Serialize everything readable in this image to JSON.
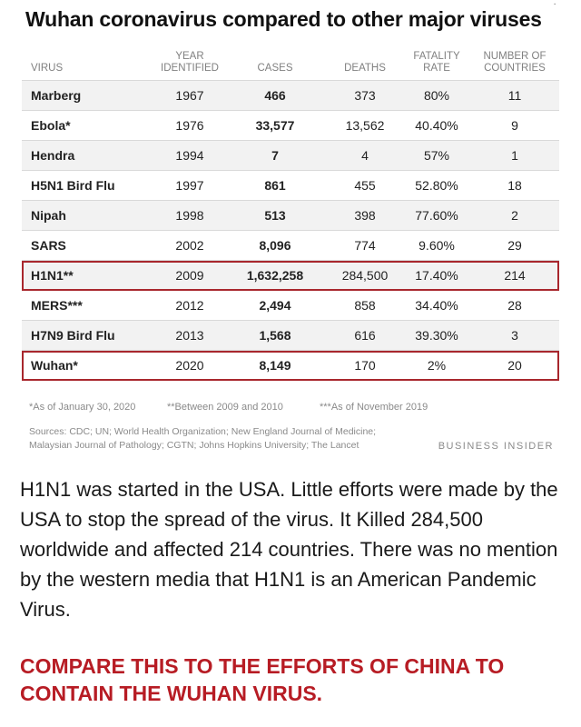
{
  "infographic": {
    "title": "Wuhan coronavirus compared to other major viruses",
    "columns": {
      "virus": "VIRUS",
      "year_line1": "YEAR",
      "year_line2": "IDENTIFIED",
      "cases": "CASES",
      "deaths": "DEATHS",
      "fatality_line1": "FATALITY",
      "fatality_line2": "RATE",
      "countries_line1": "NUMBER OF",
      "countries_line2": "COUNTRIES"
    },
    "rows": [
      {
        "virus": "Marberg",
        "year": "1967",
        "cases": "466",
        "deaths": "373",
        "fatality": "80%",
        "countries": "11"
      },
      {
        "virus": "Ebola*",
        "year": "1976",
        "cases": "33,577",
        "deaths": "13,562",
        "fatality": "40.40%",
        "countries": "9"
      },
      {
        "virus": "Hendra",
        "year": "1994",
        "cases": "7",
        "deaths": "4",
        "fatality": "57%",
        "countries": "1"
      },
      {
        "virus": "H5N1 Bird Flu",
        "year": "1997",
        "cases": "861",
        "deaths": "455",
        "fatality": "52.80%",
        "countries": "18"
      },
      {
        "virus": "Nipah",
        "year": "1998",
        "cases": "513",
        "deaths": "398",
        "fatality": "77.60%",
        "countries": "2"
      },
      {
        "virus": "SARS",
        "year": "2002",
        "cases": "8,096",
        "deaths": "774",
        "fatality": "9.60%",
        "countries": "29"
      },
      {
        "virus": "H1N1**",
        "year": "2009",
        "cases": "1,632,258",
        "deaths": "284,500",
        "fatality": "17.40%",
        "countries": "214",
        "highlight": true
      },
      {
        "virus": "MERS***",
        "year": "2012",
        "cases": "2,494",
        "deaths": "858",
        "fatality": "34.40%",
        "countries": "28"
      },
      {
        "virus": "H7N9 Bird Flu",
        "year": "2013",
        "cases": "1,568",
        "deaths": "616",
        "fatality": "39.30%",
        "countries": "3"
      },
      {
        "virus": "Wuhan*",
        "year": "2020",
        "cases": "8,149",
        "deaths": "170",
        "fatality": "2%",
        "countries": "20",
        "highlight": true
      }
    ],
    "footnotes": {
      "single": "*As of January 30, 2020",
      "double": "**Between 2009 and 2010",
      "triple": "***As of November 2019"
    },
    "sources_line1": "Sources: CDC; UN; World Health Organization; New England Journal of Medicine;",
    "sources_line2": "Malaysian Journal of Pathology; CGTN; Johns Hopkins University; The Lancet",
    "brand": "BUSINESS INSIDER"
  },
  "caption": "H1N1 was started in the USA. Little efforts were made by the USA to stop the spread of the virus. It Killed 284,500 worldwide and affected 214 countries. There was no mention by the western media that H1N1 is an American Pandemic Virus.",
  "callout": "COMPARE THIS TO THE EFFORTS OF CHINA TO CONTAIN THE WUHAN VIRUS.",
  "colors": {
    "highlight_border": "#a8272d",
    "callout_text": "#b71c24",
    "stripe": "#f2f2f2"
  }
}
